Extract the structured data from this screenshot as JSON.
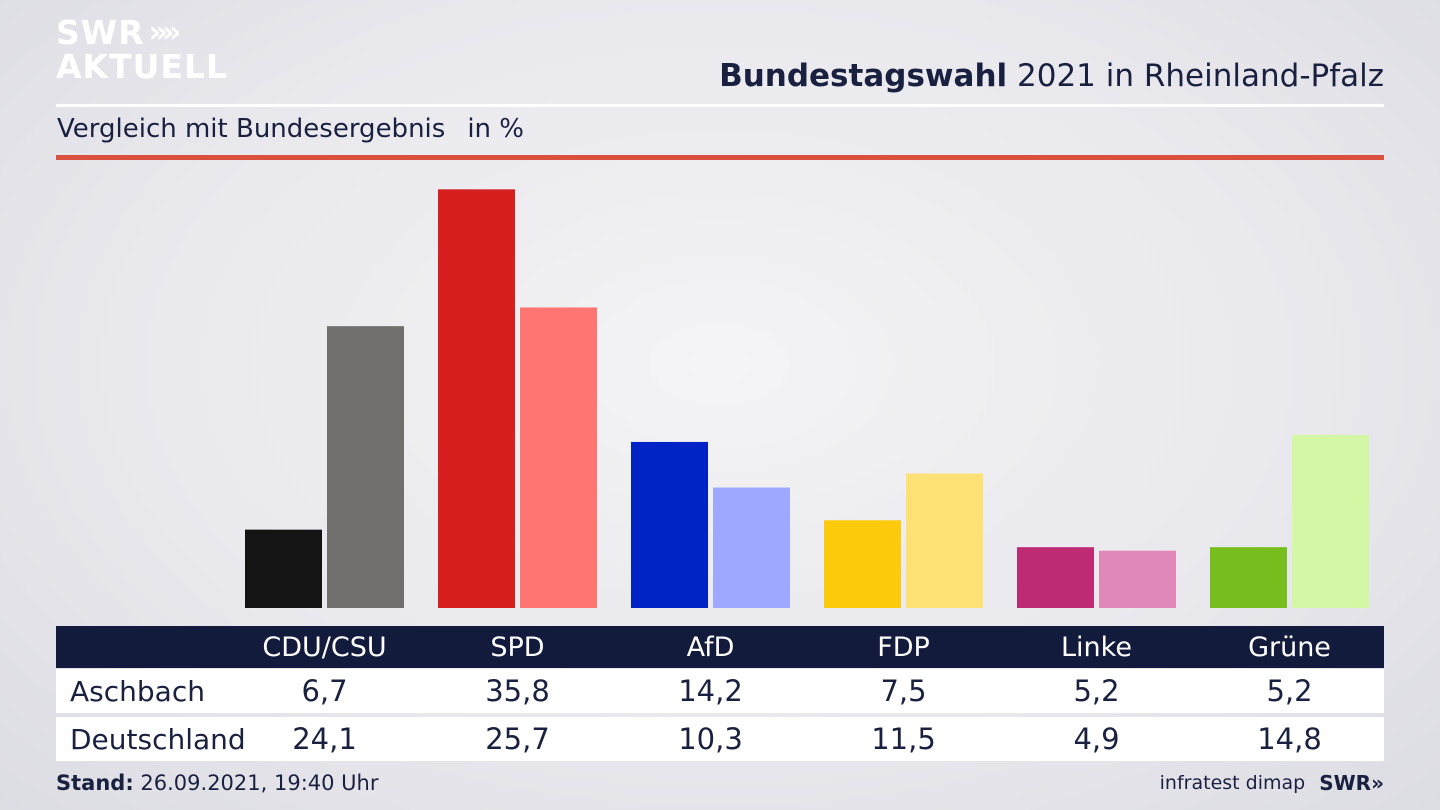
{
  "logo": {
    "line1": "SWR",
    "line1_arrows": "»»",
    "line2": "AKTUELL"
  },
  "title": {
    "bold": "Bundestagswahl",
    "rest": " 2021 in Rheinland-Pfalz"
  },
  "subtitle": {
    "text": "Vergleich mit Bundesergebnis",
    "unit": "in %"
  },
  "chart_data": {
    "type": "bar",
    "categories": [
      "CDU/CSU",
      "SPD",
      "AfD",
      "FDP",
      "Linke",
      "Grüne"
    ],
    "series": [
      {
        "name": "Aschbach",
        "values": [
          6.7,
          35.8,
          14.2,
          7.5,
          5.2,
          5.2
        ],
        "colors": [
          "#141414",
          "#d71f1f",
          "#0023c6",
          "#fdcb0c",
          "#be2b74",
          "#78bd1e"
        ]
      },
      {
        "name": "Deutschland",
        "values": [
          24.1,
          25.7,
          10.3,
          11.5,
          4.9,
          14.8
        ],
        "colors": [
          "#706f6d",
          "#fe7571",
          "#9ea8fe",
          "#fde174",
          "#e089b8",
          "#d4f7a6"
        ]
      }
    ],
    "value_labels": [
      [
        "6,7",
        "35,8",
        "14,2",
        "7,5",
        "5,2",
        "5,2"
      ],
      [
        "24,1",
        "25,7",
        "10,3",
        "11,5",
        "4,9",
        "14,8"
      ]
    ],
    "ylim": [
      0,
      36
    ]
  },
  "table": {
    "header_bg": "#131b3d"
  },
  "footer": {
    "stand_label": "Stand:",
    "stand_value": " 26.09.2021, 19:40 Uhr",
    "source": "infratest dimap",
    "brand": "SWR»"
  }
}
